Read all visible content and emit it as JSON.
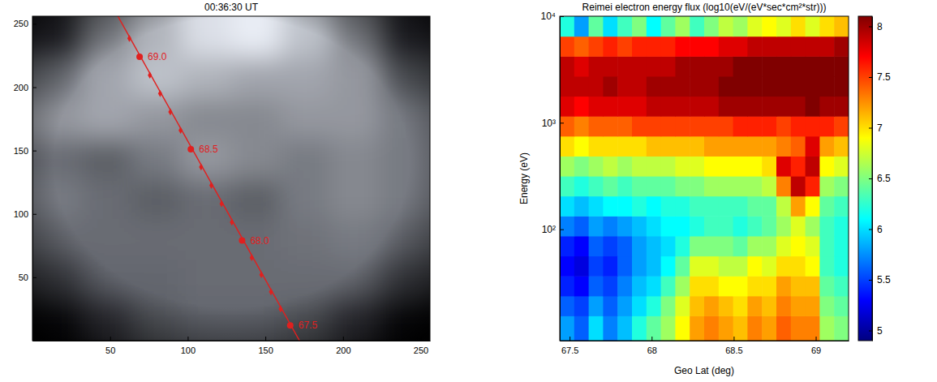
{
  "chart_data": [
    {
      "type": "image",
      "title": "00:36:30 UT",
      "xlim": [
        0,
        256
      ],
      "ylim": [
        0,
        256
      ],
      "xticks": [
        50,
        100,
        150,
        200,
        250
      ],
      "yticks": [
        50,
        100,
        150,
        200,
        250
      ],
      "color": "#e0201f",
      "intensity": [
        [
          0.2,
          0.5,
          0.65,
          0.8,
          0.85,
          0.7,
          0.5,
          0.2
        ],
        [
          0.45,
          0.6,
          0.7,
          0.65,
          0.6,
          0.6,
          0.55,
          0.35
        ],
        [
          0.55,
          0.6,
          0.55,
          0.5,
          0.5,
          0.55,
          0.55,
          0.45
        ],
        [
          0.4,
          0.35,
          0.45,
          0.55,
          0.5,
          0.45,
          0.5,
          0.45
        ],
        [
          0.45,
          0.4,
          0.35,
          0.4,
          0.35,
          0.45,
          0.5,
          0.45
        ],
        [
          0.4,
          0.4,
          0.4,
          0.4,
          0.4,
          0.42,
          0.45,
          0.4
        ],
        [
          0.3,
          0.38,
          0.38,
          0.4,
          0.4,
          0.4,
          0.4,
          0.3
        ],
        [
          0.1,
          0.25,
          0.35,
          0.38,
          0.38,
          0.35,
          0.25,
          0.1
        ]
      ],
      "track": {
        "x": [
          55,
          172
        ],
        "y": [
          256,
          0
        ]
      },
      "markers": {
        "x": [
          62.4,
          75.6,
          82.2,
          88.8,
          95.4,
          108.6,
          115.2,
          121.8,
          128.4,
          141.2,
          147.4,
          153.6,
          159.8
        ],
        "y": [
          238.5,
          209.5,
          195,
          180.5,
          166,
          137,
          122.5,
          108,
          93.5,
          65.5,
          52,
          38.5,
          25
        ]
      },
      "labeled": {
        "x": [
          69,
          102,
          135,
          166
        ],
        "y": [
          224,
          151,
          79,
          12
        ],
        "labels": [
          "69.0",
          "68.5",
          "68.0",
          "67.5"
        ]
      }
    },
    {
      "type": "heatmap",
      "title": "Reimei electron energy flux (log10(eV/(eV*sec*cm²*str)))",
      "xlabel": "Geo Lat (deg)",
      "ylabel": "Energy (eV)",
      "log": "y",
      "xlim": [
        67.44,
        69.2
      ],
      "ylim": [
        9,
        10000
      ],
      "xticks": [
        67.5,
        68,
        68.5,
        69
      ],
      "yticks": [
        {
          "value": 100,
          "label": "10²"
        },
        {
          "value": 1000,
          "label": "10³"
        },
        {
          "value": 10000,
          "label": "10⁴"
        }
      ],
      "x_bins": [
        67.44,
        67.528,
        67.616,
        67.704,
        67.792,
        67.88,
        67.968,
        68.056,
        68.144,
        68.232,
        68.32,
        68.408,
        68.496,
        68.584,
        68.672,
        68.76,
        68.848,
        68.936,
        69.024,
        69.112,
        69.2
      ],
      "y_bins": [
        9,
        15.4,
        23.7,
        36.5,
        56.2,
        86.6,
        133.4,
        205.4,
        316.2,
        487,
        750,
        1155,
        1778,
        2738,
        4217,
        6494,
        10000
      ],
      "cells": [
        [
          5.8,
          5.6,
          6.0,
          5.7,
          5.9,
          6.2,
          6.4,
          6.6,
          6.9,
          7.2,
          7.3,
          7.2,
          7.1,
          7.3,
          7.2,
          7.4,
          7.3,
          7.3,
          6.6,
          6.5
        ],
        [
          5.6,
          5.5,
          5.8,
          5.6,
          5.8,
          6.0,
          6.2,
          6.5,
          6.8,
          7.1,
          7.2,
          7.1,
          7.0,
          7.2,
          7.1,
          7.3,
          7.2,
          7.2,
          6.5,
          6.4
        ],
        [
          5.4,
          5.3,
          5.6,
          5.5,
          5.7,
          5.9,
          6.0,
          6.3,
          6.6,
          7.0,
          7.0,
          6.9,
          6.9,
          7.0,
          7.0,
          7.2,
          7.1,
          7.1,
          6.4,
          6.3
        ],
        [
          5.3,
          5.2,
          5.5,
          5.4,
          5.6,
          5.8,
          5.9,
          6.1,
          6.4,
          6.8,
          6.8,
          6.7,
          6.7,
          6.9,
          6.8,
          7.0,
          7.0,
          6.9,
          6.3,
          6.2
        ],
        [
          5.4,
          5.3,
          5.6,
          5.5,
          5.6,
          5.8,
          5.9,
          6.0,
          6.2,
          6.5,
          6.5,
          6.5,
          6.4,
          6.6,
          6.6,
          6.8,
          6.9,
          6.8,
          6.3,
          6.2
        ],
        [
          5.7,
          5.6,
          5.8,
          5.7,
          5.8,
          5.9,
          6.0,
          6.1,
          6.1,
          6.2,
          6.3,
          6.3,
          6.2,
          6.3,
          6.4,
          6.6,
          6.8,
          6.6,
          6.3,
          6.2
        ],
        [
          6.0,
          5.9,
          6.0,
          6.1,
          6.1,
          6.2,
          6.1,
          6.2,
          6.2,
          6.3,
          6.3,
          6.3,
          6.3,
          6.4,
          6.4,
          6.7,
          7.2,
          6.9,
          6.4,
          6.3
        ],
        [
          6.3,
          6.2,
          6.3,
          6.4,
          6.3,
          6.4,
          6.4,
          6.4,
          6.5,
          6.5,
          6.6,
          6.6,
          6.6,
          6.6,
          6.7,
          7.3,
          7.9,
          7.6,
          6.6,
          6.5
        ],
        [
          6.6,
          6.5,
          6.6,
          6.7,
          6.6,
          6.7,
          6.7,
          6.7,
          6.8,
          6.8,
          6.9,
          6.9,
          6.9,
          6.9,
          7.0,
          7.8,
          7.6,
          7.9,
          6.9,
          6.8
        ],
        [
          7.0,
          6.9,
          7.0,
          7.0,
          7.0,
          7.0,
          7.1,
          7.1,
          7.1,
          7.1,
          7.2,
          7.2,
          7.2,
          7.2,
          7.2,
          7.3,
          7.4,
          7.8,
          7.2,
          7.1
        ],
        [
          7.4,
          7.3,
          7.4,
          7.4,
          7.4,
          7.5,
          7.5,
          7.5,
          7.5,
          7.5,
          7.5,
          7.5,
          7.6,
          7.6,
          7.6,
          7.5,
          7.6,
          7.6,
          7.6,
          7.5
        ],
        [
          7.8,
          7.7,
          7.8,
          7.8,
          7.8,
          7.8,
          7.9,
          7.9,
          7.9,
          7.9,
          7.9,
          8.0,
          8.0,
          8.0,
          8.0,
          8.0,
          8.0,
          8.1,
          8.0,
          8.0
        ],
        [
          7.9,
          7.9,
          7.9,
          8.0,
          7.9,
          7.9,
          8.0,
          8.0,
          8.0,
          8.0,
          8.0,
          8.1,
          8.1,
          8.1,
          8.1,
          8.1,
          8.1,
          8.1,
          8.1,
          8.1
        ],
        [
          7.9,
          7.8,
          7.9,
          7.9,
          7.9,
          7.9,
          7.9,
          7.9,
          8.0,
          8.0,
          8.0,
          8.0,
          8.1,
          8.1,
          8.1,
          8.1,
          8.1,
          8.1,
          8.1,
          8.1
        ],
        [
          7.5,
          7.4,
          7.5,
          7.6,
          7.5,
          7.6,
          7.6,
          7.6,
          7.7,
          7.7,
          7.7,
          7.8,
          7.8,
          7.9,
          7.9,
          7.9,
          7.9,
          7.9,
          7.9,
          8.0
        ],
        [
          6.2,
          5.8,
          6.4,
          6.0,
          6.3,
          6.5,
          6.1,
          6.4,
          6.6,
          6.3,
          6.5,
          6.7,
          6.6,
          6.8,
          6.9,
          6.8,
          7.0,
          6.8,
          7.0,
          7.1
        ]
      ],
      "colorbar": {
        "lim": [
          4.9,
          8.1
        ],
        "ticks": [
          5,
          5.5,
          6,
          6.5,
          7,
          7.5,
          8
        ]
      }
    }
  ]
}
